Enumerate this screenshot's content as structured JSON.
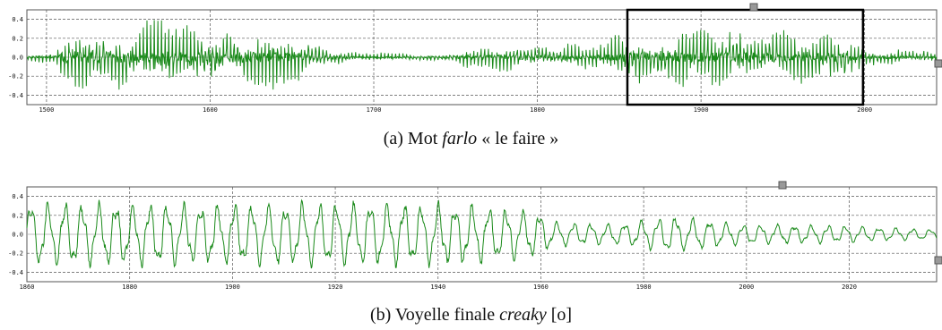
{
  "panels": [
    {
      "caption": {
        "prefix": "(a) Mot ",
        "italic": "farlo",
        "suffix": " « le faire »"
      },
      "chart_data": {
        "type": "line",
        "series": [
          {
            "color": "#1a8a1a"
          }
        ],
        "xlim": [
          1488,
          2044
        ],
        "ylim": [
          -0.5,
          0.5
        ],
        "xticks": [
          1500,
          1600,
          1700,
          1800,
          1900,
          2000
        ],
        "xtick_labels": [
          "1500",
          "1600",
          "1700",
          "1800",
          "1900",
          "2000"
        ],
        "yticks": [
          0.4,
          0.2,
          0.0,
          -0.2,
          -0.4
        ],
        "ytick_labels": [
          "0.4",
          "0.2",
          "0.0",
          "-0.2",
          "-0.4"
        ],
        "grid": true,
        "selection_box": {
          "x_start": 1855,
          "x_end": 1999
        },
        "envelope": [
          {
            "x": 1488,
            "amp": 0.05
          },
          {
            "x": 1505,
            "amp": 0.07
          },
          {
            "x": 1512,
            "amp": 0.38
          },
          {
            "x": 1540,
            "amp": 0.42
          },
          {
            "x": 1600,
            "amp": 0.38
          },
          {
            "x": 1640,
            "amp": 0.33
          },
          {
            "x": 1660,
            "amp": 0.25
          },
          {
            "x": 1690,
            "amp": 0.05
          },
          {
            "x": 1740,
            "amp": 0.05
          },
          {
            "x": 1760,
            "amp": 0.13
          },
          {
            "x": 1800,
            "amp": 0.17
          },
          {
            "x": 1840,
            "amp": 0.15
          },
          {
            "x": 1856,
            "amp": 0.35
          },
          {
            "x": 1920,
            "amp": 0.36
          },
          {
            "x": 1990,
            "amp": 0.3
          },
          {
            "x": 2000,
            "amp": 0.12
          },
          {
            "x": 2044,
            "amp": 0.07
          }
        ]
      }
    },
    {
      "caption": {
        "prefix": "(b) Voyelle finale ",
        "italic": "creaky",
        "suffix": " [o]"
      },
      "chart_data": {
        "type": "line",
        "series": [
          {
            "color": "#1a8a1a"
          }
        ],
        "xlim": [
          1860,
          2037
        ],
        "ylim": [
          -0.5,
          0.5
        ],
        "xticks": [
          1860,
          1880,
          1900,
          1920,
          1940,
          1960,
          1980,
          2000,
          2020
        ],
        "xtick_labels": [
          "1860",
          "1880",
          "1900",
          "1920",
          "1940",
          "1960",
          "1980",
          "2000",
          "2020"
        ],
        "yticks": [
          0.4,
          0.2,
          0.0,
          -0.2,
          -0.4
        ],
        "ytick_labels": [
          "0.4",
          "0.2",
          "0.0",
          "-0.2",
          "-0.4"
        ],
        "grid": true,
        "envelope": [
          {
            "x": 1860,
            "amp": 0.32
          },
          {
            "x": 1900,
            "amp": 0.3
          },
          {
            "x": 1920,
            "amp": 0.32
          },
          {
            "x": 1945,
            "amp": 0.3
          },
          {
            "x": 1960,
            "amp": 0.22
          },
          {
            "x": 1962,
            "amp": 0.12
          },
          {
            "x": 1975,
            "amp": 0.1
          },
          {
            "x": 1985,
            "amp": 0.18
          },
          {
            "x": 2000,
            "amp": 0.1
          },
          {
            "x": 2015,
            "amp": 0.09
          },
          {
            "x": 2037,
            "amp": 0.05
          }
        ]
      }
    }
  ]
}
